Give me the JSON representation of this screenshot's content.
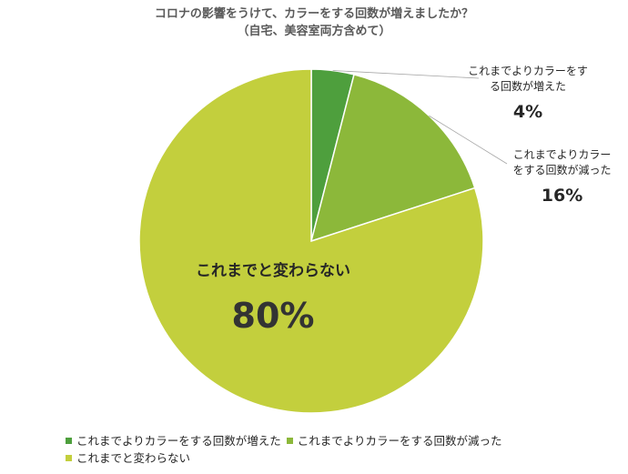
{
  "chart_data": {
    "type": "pie",
    "title_line1": "コロナの影響をうけて、カラーをする回数が増えましたか？",
    "title_line2": "（自宅、美容室両方含めて）",
    "slices": [
      {
        "name": "これまでよりカラーをする回数が増えた",
        "value": 4,
        "label": "4%",
        "color": "#4e9f3d",
        "callout_line1": "これまでよりカラーをす",
        "callout_line2": "る回数が増えた"
      },
      {
        "name": "これまでよりカラーをする回数が減った",
        "value": 16,
        "label": "16%",
        "color": "#8cb83a",
        "callout_line1": "これまでよりカラー",
        "callout_line2": "をする回数が減った"
      },
      {
        "name": "これまでと変わらない",
        "value": 80,
        "label": "80%",
        "color": "#c3cf3d",
        "callout_line1": "これまでと変わらない"
      }
    ],
    "legend_position": "bottom"
  }
}
